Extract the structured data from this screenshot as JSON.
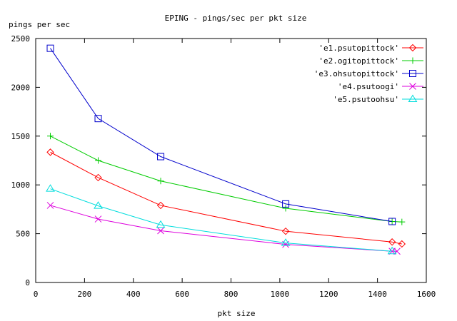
{
  "chart_data": {
    "type": "line",
    "title": "EPING - pings/sec per pkt size",
    "xlabel": "pkt size",
    "ylabel": "pings per sec",
    "xlim": [
      0,
      1600
    ],
    "ylim": [
      0,
      2500
    ],
    "xticks": [
      0,
      200,
      400,
      600,
      800,
      1000,
      1200,
      1400,
      1600
    ],
    "yticks": [
      0,
      500,
      1000,
      1500,
      2000,
      2500
    ],
    "grid": false,
    "legend_position": "top-right",
    "series": [
      {
        "name": "'e1.psutopittock'",
        "color": "#ff0000",
        "marker": "diamond",
        "x": [
          60,
          256,
          512,
          1024,
          1460,
          1500
        ],
        "y": [
          1335,
          1075,
          790,
          525,
          415,
          395
        ]
      },
      {
        "name": "'e2.ogitopittock'",
        "color": "#00cc00",
        "marker": "plus",
        "x": [
          60,
          256,
          512,
          1024,
          1460,
          1500
        ],
        "y": [
          1500,
          1250,
          1040,
          760,
          625,
          620
        ]
      },
      {
        "name": "'e3.ohsutopittock'",
        "color": "#0000cc",
        "marker": "square",
        "x": [
          60,
          256,
          512,
          1024,
          1460
        ],
        "y": [
          2400,
          1680,
          1290,
          805,
          625
        ]
      },
      {
        "name": "'e4.psutoogi'",
        "color": "#dd00dd",
        "marker": "cross",
        "x": [
          60,
          256,
          512,
          1024,
          1460,
          1480
        ],
        "y": [
          790,
          650,
          530,
          390,
          320,
          320
        ]
      },
      {
        "name": "'e5.psutoohsu'",
        "color": "#00dddd",
        "marker": "triangle",
        "x": [
          60,
          256,
          512,
          1024,
          1460
        ],
        "y": [
          960,
          785,
          590,
          405,
          320
        ]
      }
    ]
  }
}
